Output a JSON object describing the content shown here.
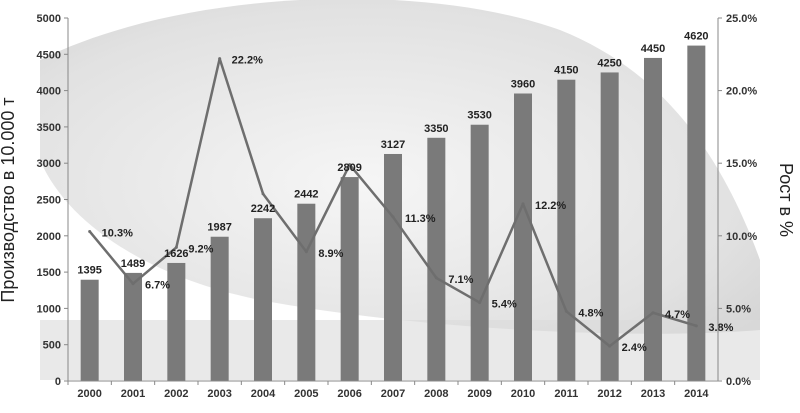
{
  "chart_data": {
    "type": "bar",
    "categories": [
      "2000",
      "2001",
      "2002",
      "2003",
      "2004",
      "2005",
      "2006",
      "2007",
      "2008",
      "2009",
      "2010",
      "2011",
      "2012",
      "2013",
      "2014"
    ],
    "series": [
      {
        "type": "bar",
        "axis": "left",
        "values": [
          1395,
          1489,
          1626,
          1987,
          2242,
          2442,
          2809,
          3127,
          3350,
          3530,
          3960,
          4150,
          4250,
          4450,
          4620
        ],
        "labels": [
          "1395",
          "1489",
          "1626",
          "1987",
          "2242",
          "2442",
          "2809",
          "3127",
          "3350",
          "3530",
          "3960",
          "4150",
          "4250",
          "4450",
          "4620"
        ],
        "color": "#7a7a7a"
      },
      {
        "type": "line",
        "axis": "right",
        "values": [
          10.3,
          6.7,
          9.2,
          22.2,
          12.9,
          8.9,
          14.9,
          11.3,
          7.1,
          5.4,
          12.2,
          4.8,
          2.4,
          4.7,
          3.8
        ],
        "labels": [
          "10.3%",
          "6.7%",
          "9.2%",
          "22.2%",
          "",
          "8.9%",
          "",
          "11.3%",
          "7.1%",
          "5.4%",
          "12.2%",
          "4.8%",
          "2.4%",
          "4.7%",
          "3.8%"
        ],
        "color": "#6e6e6e"
      }
    ],
    "ylabel": "Производство в 10.000 т",
    "y2label": "Рост  в  %",
    "ylim": [
      0,
      5000
    ],
    "yticks": [
      "0",
      "500",
      "1000",
      "1500",
      "2000",
      "2500",
      "3000",
      "3500",
      "4000",
      "4500",
      "5000"
    ],
    "y2lim": [
      0,
      25
    ],
    "y2ticks": [
      "0.0%",
      "5.0%",
      "10.0%",
      "15.0%",
      "20.0%",
      "25.0%"
    ],
    "grid": false,
    "legend": "none"
  }
}
